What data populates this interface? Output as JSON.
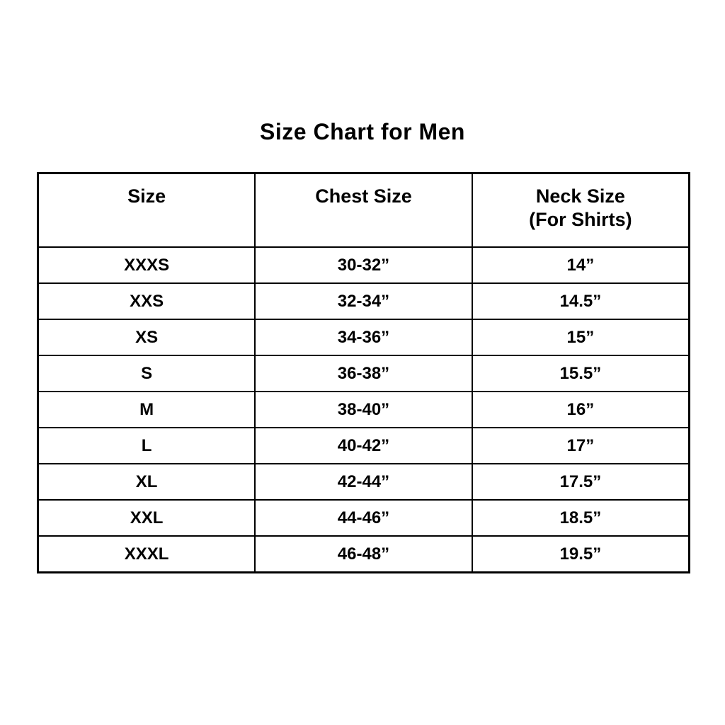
{
  "title": "Size Chart for Men",
  "chart_data": {
    "type": "table",
    "title": "Size Chart for Men",
    "columns": [
      {
        "label": "Size",
        "sublabel": ""
      },
      {
        "label": "Chest Size",
        "sublabel": ""
      },
      {
        "label": "Neck Size",
        "sublabel": "(For Shirts)"
      }
    ],
    "rows": [
      {
        "size": "XXXS",
        "chest_size": "30-32”",
        "neck_size": "14”"
      },
      {
        "size": "XXS",
        "chest_size": "32-34”",
        "neck_size": "14.5”"
      },
      {
        "size": "XS",
        "chest_size": "34-36”",
        "neck_size": "15”"
      },
      {
        "size": "S",
        "chest_size": "36-38”",
        "neck_size": "15.5”"
      },
      {
        "size": "M",
        "chest_size": "38-40”",
        "neck_size": "16”"
      },
      {
        "size": "L",
        "chest_size": "40-42”",
        "neck_size": "17”"
      },
      {
        "size": "XL",
        "chest_size": "42-44”",
        "neck_size": "17.5”"
      },
      {
        "size": "XXL",
        "chest_size": "44-46”",
        "neck_size": "18.5”"
      },
      {
        "size": "XXXL",
        "chest_size": "46-48”",
        "neck_size": "19.5”"
      }
    ],
    "colors": {
      "text": "#000000",
      "border": "#000000",
      "background": "#ffffff"
    }
  }
}
